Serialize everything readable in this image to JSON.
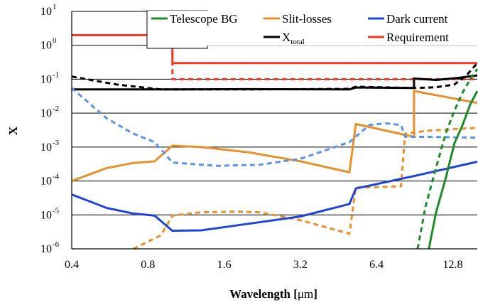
{
  "chart_data": {
    "type": "line",
    "xlabel_main": "Wavelength [",
    "xlabel_unit": "μm",
    "xlabel_end": "]",
    "ylabel": "X",
    "x_scale": "log2",
    "y_scale": "log10",
    "xlim": [
      0.4,
      16
    ],
    "ylim": [
      1e-06,
      10
    ],
    "grid": "horizontal",
    "legend_position": "top-right",
    "x_tick_labels": [
      "0.4",
      "0.8",
      "1.6",
      "3.2",
      "6.4",
      "12.8"
    ],
    "x_ticks": [
      0.4,
      0.8,
      1.6,
      3.2,
      6.4,
      12.8
    ],
    "y_ticks": [
      {
        "value": 10,
        "base": "10",
        "exp": "1"
      },
      {
        "value": 1,
        "base": "10",
        "exp": "0"
      },
      {
        "value": 0.1,
        "base": "10",
        "exp": "-1"
      },
      {
        "value": 0.01,
        "base": "10",
        "exp": "-2"
      },
      {
        "value": 0.001,
        "base": "10",
        "exp": "-3"
      },
      {
        "value": 0.0001,
        "base": "10",
        "exp": "-4"
      },
      {
        "value": 1e-05,
        "base": "10",
        "exp": "-5"
      },
      {
        "value": 1e-06,
        "base": "10",
        "exp": "-6"
      }
    ],
    "legend": [
      {
        "label": "Telescope BG",
        "sub": "",
        "color": "#1e8a2a"
      },
      {
        "label": "Slit-losses",
        "sub": "",
        "color": "#e8902a"
      },
      {
        "label": "Dark current",
        "sub": "",
        "color": "#1f45d6"
      },
      {
        "label": "X",
        "sub": "total",
        "color": "#000000"
      },
      {
        "label": "Requirement",
        "sub": "",
        "color": "#f03a22"
      }
    ],
    "series": [
      {
        "name": "Requirement",
        "color": "#f03a22",
        "style": "solid",
        "points": [
          [
            0.4,
            2
          ],
          [
            1.0,
            2
          ],
          [
            1.0,
            0.3
          ],
          [
            16,
            0.3
          ]
        ]
      },
      {
        "name": "Requirement",
        "color": "#f03a22",
        "style": "dashed",
        "points": [
          [
            1.0,
            2
          ],
          [
            1.0,
            0.1
          ],
          [
            16,
            0.1
          ]
        ]
      },
      {
        "name": "X total",
        "color": "#000000",
        "style": "solid",
        "points": [
          [
            0.4,
            0.05
          ],
          [
            1.0,
            0.05
          ],
          [
            2.0,
            0.051
          ],
          [
            5.0,
            0.05
          ],
          [
            5.3,
            0.057
          ],
          [
            9.0,
            0.055
          ],
          [
            9.0,
            0.105
          ],
          [
            11.0,
            0.095
          ],
          [
            13.5,
            0.11
          ],
          [
            16,
            0.13
          ]
        ]
      },
      {
        "name": "X total",
        "color": "#000000",
        "style": "dashed",
        "points": [
          [
            0.4,
            0.12
          ],
          [
            0.6,
            0.07
          ],
          [
            0.9,
            0.05
          ],
          [
            2.0,
            0.05
          ],
          [
            5.0,
            0.052
          ],
          [
            5.3,
            0.06
          ],
          [
            9.0,
            0.055
          ],
          [
            11.0,
            0.058
          ],
          [
            13.0,
            0.07
          ],
          [
            14.5,
            0.13
          ],
          [
            16,
            0.3
          ]
        ]
      },
      {
        "name": "Slit-losses",
        "color": "#e8902a",
        "style": "solid",
        "points": [
          [
            0.4,
            0.0001
          ],
          [
            0.55,
            0.00024
          ],
          [
            0.7,
            0.00034
          ],
          [
            0.85,
            0.00038
          ],
          [
            1.0,
            0.0011
          ],
          [
            1.3,
            0.001
          ],
          [
            2.0,
            0.0007
          ],
          [
            3.2,
            0.00038
          ],
          [
            5.0,
            0.00018
          ],
          [
            5.3,
            0.0048
          ],
          [
            9.0,
            0.002
          ],
          [
            9.0,
            0.045
          ],
          [
            16,
            0.02
          ]
        ]
      },
      {
        "name": "Slit-losses",
        "color": "#e8902a",
        "style": "dashed",
        "points": [
          [
            0.7,
            1e-06
          ],
          [
            0.9,
            2.5e-06
          ],
          [
            1.0,
            9.5e-06
          ],
          [
            1.3,
            1.2e-05
          ],
          [
            1.8,
            1.25e-05
          ],
          [
            2.2,
            1.2e-05
          ],
          [
            3.2,
            7e-06
          ],
          [
            5.0,
            2.8e-06
          ],
          [
            5.3,
            6.5e-05
          ],
          [
            6.0,
            6.5e-05
          ],
          [
            8.0,
            7e-05
          ],
          [
            8.3,
            0.0025
          ],
          [
            10.0,
            0.003
          ],
          [
            16,
            0.0037
          ]
        ]
      },
      {
        "name": "Dark current",
        "color": "#1f45d6",
        "style": "solid",
        "points": [
          [
            0.4,
            4e-05
          ],
          [
            0.55,
            1.6e-05
          ],
          [
            0.7,
            1.1e-05
          ],
          [
            0.85,
            9.5e-06
          ],
          [
            1.0,
            3.4e-06
          ],
          [
            1.3,
            3.5e-06
          ],
          [
            2.0,
            5.5e-06
          ],
          [
            3.2,
            9e-06
          ],
          [
            5.0,
            2.1e-05
          ],
          [
            5.3,
            6e-05
          ],
          [
            9.0,
            0.00014
          ],
          [
            16,
            0.00037
          ]
        ]
      },
      {
        "name": "Dark current",
        "color": "#5b93e8",
        "style": "dashed",
        "points": [
          [
            0.4,
            0.055
          ],
          [
            0.55,
            0.007
          ],
          [
            0.7,
            0.0025
          ],
          [
            0.85,
            0.0014
          ],
          [
            1.0,
            0.00035
          ],
          [
            1.5,
            0.00028
          ],
          [
            2.2,
            0.0003
          ],
          [
            3.2,
            0.00045
          ],
          [
            5.0,
            0.0014
          ],
          [
            6.0,
            0.0045
          ],
          [
            7.0,
            0.005
          ],
          [
            8.0,
            0.0045
          ],
          [
            8.3,
            0.002
          ],
          [
            10.0,
            0.002
          ],
          [
            16,
            0.0019
          ]
        ]
      },
      {
        "name": "Telescope BG",
        "color": "#1e8a2a",
        "style": "solid",
        "points": [
          [
            10.3,
            1e-06
          ],
          [
            11.0,
            1.2e-05
          ],
          [
            12.0,
            0.00012
          ],
          [
            13.0,
            0.0013
          ],
          [
            14.0,
            0.0045
          ],
          [
            15.0,
            0.018
          ],
          [
            16,
            0.045
          ]
        ]
      },
      {
        "name": "Telescope BG",
        "color": "#1e8a2a",
        "style": "dashed",
        "points": [
          [
            9.3,
            1e-06
          ],
          [
            10.0,
            1.8e-05
          ],
          [
            11.0,
            0.00025
          ],
          [
            12.0,
            0.0025
          ],
          [
            13.0,
            0.012
          ],
          [
            14.0,
            0.04
          ],
          [
            15.0,
            0.1
          ],
          [
            16,
            0.2
          ]
        ]
      }
    ]
  }
}
